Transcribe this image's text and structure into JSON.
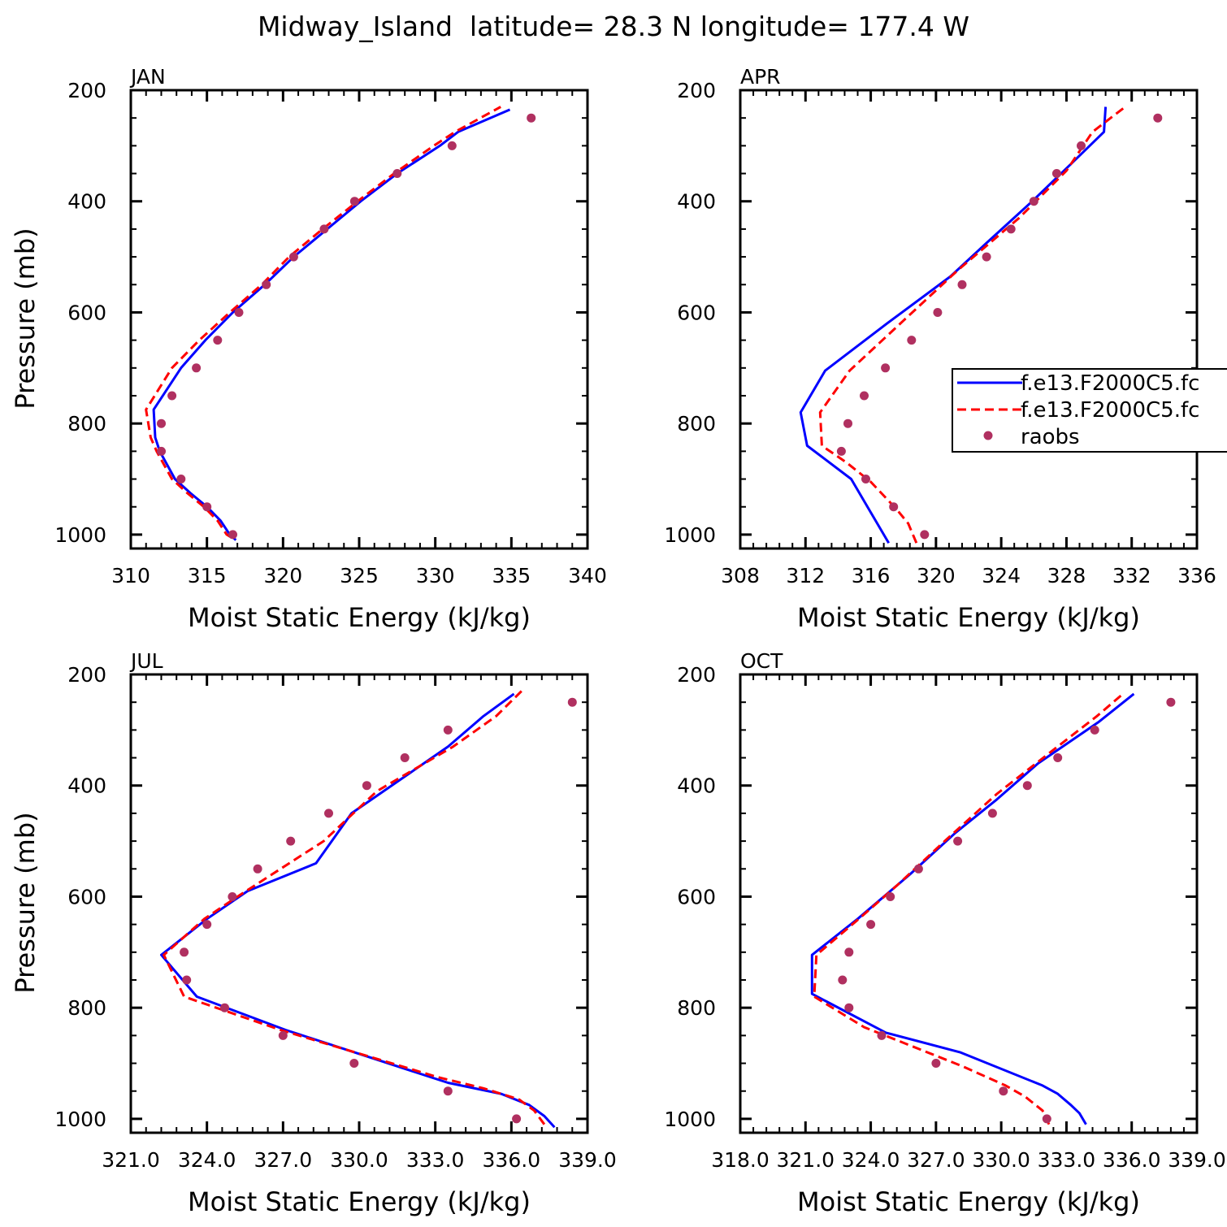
{
  "title": "Midway_Island  latitude= 28.3 N longitude= 177.4 W",
  "colors": {
    "model1": "#0000ff",
    "model2": "#ff0000",
    "obs": "#b03060",
    "axis": "#000000"
  },
  "legend": {
    "entries": [
      {
        "label": "f.e13.F2000C5.fc",
        "style": "solid-line",
        "color": "#0000ff"
      },
      {
        "label": "f.e13.F2000C5.fc",
        "style": "dashed-line",
        "color": "#ff0000"
      },
      {
        "label": "raobs",
        "style": "marker",
        "color": "#b03060"
      }
    ]
  },
  "chart_data": [
    {
      "type": "line",
      "panel_label": "JAN",
      "xlabel": "Moist Static Energy (kJ/kg)",
      "ylabel": "Pressure (mb)",
      "xlim": [
        310,
        340
      ],
      "ylim": [
        1025,
        200
      ],
      "x_ticks": [
        310,
        315,
        320,
        325,
        330,
        335,
        340
      ],
      "x_tick_labels": [
        "310",
        "315",
        "320",
        "325",
        "330",
        "335",
        "340"
      ],
      "y_ticks": [
        200,
        400,
        600,
        800,
        1000
      ],
      "y_tick_labels": [
        "200",
        "400",
        "600",
        "800",
        "1000"
      ],
      "series": [
        {
          "name": "f.e13.F2000C5.fc",
          "style": "solid",
          "pressure": [
            1010,
            1000,
            975,
            950,
            925,
            900,
            875,
            850,
            825,
            775,
            700,
            650,
            600,
            550,
            500,
            450,
            400,
            350,
            300,
            275,
            235
          ],
          "mse": [
            316.9,
            316.5,
            315.9,
            315.0,
            313.9,
            312.9,
            312.4,
            311.9,
            311.6,
            311.5,
            313.3,
            314.9,
            316.7,
            318.8,
            320.7,
            322.9,
            325.1,
            327.5,
            330.3,
            331.5,
            334.9
          ]
        },
        {
          "name": "f.e13.F2000C5.fc",
          "style": "dashed",
          "pressure": [
            1005,
            1000,
            975,
            950,
            925,
            900,
            875,
            850,
            825,
            775,
            700,
            650,
            600,
            550,
            500,
            450,
            400,
            350,
            300,
            275,
            230
          ],
          "mse": [
            316.6,
            316.3,
            315.7,
            314.8,
            313.7,
            312.7,
            312.2,
            311.7,
            311.3,
            311.0,
            312.7,
            314.5,
            316.5,
            318.6,
            320.4,
            322.6,
            324.9,
            327.3,
            329.9,
            331.3,
            334.3
          ]
        }
      ],
      "points": {
        "name": "raobs",
        "pressure": [
          1000,
          950,
          900,
          850,
          800,
          750,
          700,
          650,
          600,
          550,
          500,
          450,
          400,
          350,
          300,
          250
        ],
        "mse": [
          316.7,
          315.0,
          313.3,
          312.0,
          312.0,
          312.7,
          314.3,
          315.7,
          317.1,
          318.9,
          320.7,
          322.7,
          324.7,
          327.5,
          331.1,
          336.3
        ]
      }
    },
    {
      "type": "line",
      "panel_label": "APR",
      "xlabel": "Moist Static Energy (kJ/kg)",
      "ylabel": "",
      "xlim": [
        308,
        336
      ],
      "ylim": [
        1025,
        200
      ],
      "x_ticks": [
        308,
        312,
        316,
        320,
        324,
        328,
        332,
        336
      ],
      "x_tick_labels": [
        "308",
        "312",
        "316",
        "320",
        "324",
        "328",
        "332",
        "336"
      ],
      "y_ticks": [
        200,
        400,
        600,
        800,
        1000
      ],
      "y_tick_labels": [
        "200",
        "400",
        "600",
        "800",
        "1000"
      ],
      "series": [
        {
          "name": "f.e13.F2000C5.fc",
          "style": "solid",
          "pressure": [
            1015,
            960,
            900,
            840,
            780,
            705,
            620,
            535,
            475,
            400,
            335,
            275,
            230
          ],
          "mse": [
            317.1,
            316.0,
            314.8,
            312.1,
            311.7,
            313.2,
            317.0,
            320.9,
            323.1,
            325.9,
            328.2,
            330.3,
            330.4
          ]
        },
        {
          "name": "f.e13.F2000C5.fc",
          "style": "dashed",
          "pressure": [
            1015,
            980,
            955,
            905,
            870,
            840,
            780,
            705,
            615,
            525,
            430,
            345,
            275,
            230
          ],
          "mse": [
            318.8,
            318.3,
            317.6,
            316.0,
            314.5,
            313.0,
            312.9,
            314.7,
            318.0,
            321.3,
            325.1,
            328.0,
            329.6,
            331.6
          ]
        }
      ],
      "points": {
        "name": "raobs",
        "pressure": [
          1000,
          950,
          900,
          850,
          800,
          750,
          700,
          650,
          600,
          550,
          500,
          450,
          400,
          350,
          300,
          250
        ],
        "mse": [
          319.3,
          317.4,
          315.7,
          314.2,
          314.6,
          315.6,
          316.9,
          318.5,
          320.1,
          321.6,
          323.1,
          324.6,
          326.0,
          327.4,
          328.9,
          333.6
        ]
      }
    },
    {
      "type": "line",
      "panel_label": "JUL",
      "xlabel": "Moist Static Energy (kJ/kg)",
      "ylabel": "Pressure (mb)",
      "xlim": [
        321,
        339
      ],
      "ylim": [
        1025,
        200
      ],
      "x_ticks": [
        321,
        324,
        327,
        330,
        333,
        336,
        339
      ],
      "x_tick_labels": [
        "321.0",
        "324.0",
        "327.0",
        "330.0",
        "333.0",
        "336.0",
        "339.0"
      ],
      "y_ticks": [
        200,
        400,
        600,
        800,
        1000
      ],
      "y_tick_labels": [
        "200",
        "400",
        "600",
        "800",
        "1000"
      ],
      "series": [
        {
          "name": "f.e13.F2000C5.fc",
          "style": "solid",
          "pressure": [
            1015,
            995,
            975,
            955,
            935,
            840,
            780,
            705,
            640,
            590,
            540,
            450,
            390,
            330,
            275,
            235
          ],
          "mse": [
            337.7,
            337.3,
            336.7,
            335.6,
            333.5,
            327.1,
            323.6,
            322.2,
            324.0,
            325.6,
            328.3,
            329.7,
            331.6,
            333.5,
            334.9,
            336.1
          ]
        },
        {
          "name": "f.e13.F2000C5.fc",
          "style": "dashed",
          "pressure": [
            1010,
            985,
            965,
            945,
            925,
            840,
            780,
            705,
            640,
            600,
            500,
            410,
            330,
            275,
            230
          ],
          "mse": [
            337.3,
            336.9,
            336.3,
            334.9,
            333.1,
            326.9,
            323.1,
            322.3,
            323.9,
            325.2,
            328.6,
            330.7,
            333.7,
            335.4,
            336.4
          ]
        }
      ],
      "points": {
        "name": "raobs",
        "pressure": [
          1000,
          950,
          900,
          850,
          800,
          750,
          700,
          650,
          600,
          550,
          500,
          450,
          400,
          350,
          300,
          250
        ],
        "mse": [
          336.2,
          333.5,
          329.8,
          327.0,
          324.7,
          323.2,
          323.1,
          324.0,
          325.0,
          326.0,
          327.3,
          328.8,
          330.3,
          331.8,
          333.5,
          338.4
        ]
      }
    },
    {
      "type": "line",
      "panel_label": "OCT",
      "xlabel": "Moist Static Energy (kJ/kg)",
      "ylabel": "",
      "xlim": [
        318,
        339
      ],
      "ylim": [
        1025,
        200
      ],
      "x_ticks": [
        318,
        321,
        324,
        327,
        330,
        333,
        336,
        339
      ],
      "x_tick_labels": [
        "318.0",
        "321.0",
        "324.0",
        "327.0",
        "330.0",
        "333.0",
        "336.0",
        "339.0"
      ],
      "y_ticks": [
        200,
        400,
        600,
        800,
        1000
      ],
      "y_tick_labels": [
        "200",
        "400",
        "600",
        "800",
        "1000"
      ],
      "series": [
        {
          "name": "f.e13.F2000C5.fc",
          "style": "solid",
          "pressure": [
            1010,
            990,
            975,
            955,
            940,
            880,
            845,
            775,
            705,
            640,
            560,
            485,
            425,
            360,
            285,
            235
          ],
          "mse": [
            333.9,
            333.6,
            333.2,
            332.6,
            331.9,
            328.1,
            324.7,
            321.3,
            321.3,
            323.4,
            325.8,
            327.9,
            329.8,
            331.7,
            334.5,
            336.1
          ]
        },
        {
          "name": "f.e13.F2000C5.fc",
          "style": "dashed",
          "pressure": [
            1010,
            985,
            960,
            940,
            905,
            835,
            780,
            705,
            635,
            580,
            500,
            415,
            345,
            275,
            235
          ],
          "mse": [
            332.2,
            331.9,
            331.1,
            330.2,
            328.2,
            323.7,
            321.4,
            321.5,
            323.6,
            325.2,
            327.4,
            329.8,
            332.1,
            334.4,
            335.6
          ]
        }
      ],
      "points": {
        "name": "raobs",
        "pressure": [
          1000,
          950,
          900,
          850,
          800,
          750,
          700,
          650,
          600,
          550,
          500,
          450,
          400,
          350,
          300,
          250
        ],
        "mse": [
          332.1,
          330.1,
          327.0,
          324.5,
          323.0,
          322.7,
          323.0,
          324.0,
          324.9,
          326.2,
          328.0,
          329.6,
          331.2,
          332.6,
          334.3,
          337.8
        ]
      }
    }
  ]
}
